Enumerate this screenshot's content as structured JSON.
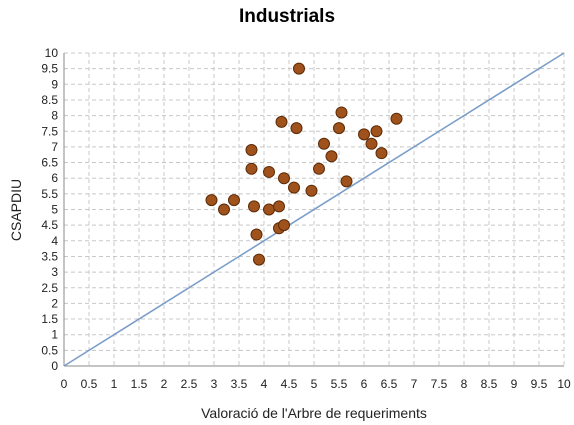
{
  "chart_data": {
    "type": "scatter",
    "title": "Industrials",
    "xlabel": "Valoració de l'Arbre de requeriments",
    "ylabel": "CSAPDIU",
    "xlim": [
      0,
      10
    ],
    "ylim": [
      0,
      10
    ],
    "x_ticks": [
      "0",
      "0.5",
      "1",
      "1.5",
      "2",
      "2.5",
      "3",
      "3.5",
      "4",
      "4.5",
      "5",
      "5.5",
      "6",
      "6.5",
      "7",
      "7.5",
      "8",
      "8.5",
      "9",
      "9.5",
      "10"
    ],
    "y_ticks": [
      "0",
      "0.5",
      "1",
      "1.5",
      "2",
      "2.5",
      "3",
      "3.5",
      "4",
      "4.5",
      "5",
      "5.5",
      "6",
      "6.5",
      "7",
      "7.5",
      "8",
      "8.5",
      "9",
      "9.5",
      "10"
    ],
    "grid": true,
    "reference_line": {
      "x": [
        0,
        10
      ],
      "y": [
        0,
        10
      ]
    },
    "points": [
      {
        "x": 2.95,
        "y": 5.3
      },
      {
        "x": 3.2,
        "y": 5.0
      },
      {
        "x": 3.4,
        "y": 5.3
      },
      {
        "x": 3.75,
        "y": 6.9
      },
      {
        "x": 3.75,
        "y": 6.3
      },
      {
        "x": 3.8,
        "y": 5.1
      },
      {
        "x": 3.85,
        "y": 4.2
      },
      {
        "x": 3.9,
        "y": 3.4
      },
      {
        "x": 4.1,
        "y": 5.0
      },
      {
        "x": 4.1,
        "y": 6.2
      },
      {
        "x": 4.3,
        "y": 5.1
      },
      {
        "x": 4.3,
        "y": 4.4
      },
      {
        "x": 4.35,
        "y": 7.8
      },
      {
        "x": 4.4,
        "y": 4.5
      },
      {
        "x": 4.4,
        "y": 6.0
      },
      {
        "x": 4.6,
        "y": 5.7
      },
      {
        "x": 4.65,
        "y": 7.6
      },
      {
        "x": 4.7,
        "y": 9.5
      },
      {
        "x": 4.95,
        "y": 5.6
      },
      {
        "x": 5.1,
        "y": 6.3
      },
      {
        "x": 5.2,
        "y": 7.1
      },
      {
        "x": 5.35,
        "y": 6.7
      },
      {
        "x": 5.5,
        "y": 7.6
      },
      {
        "x": 5.55,
        "y": 8.1
      },
      {
        "x": 5.65,
        "y": 5.9
      },
      {
        "x": 6.0,
        "y": 7.4
      },
      {
        "x": 6.15,
        "y": 7.1
      },
      {
        "x": 6.25,
        "y": 7.5
      },
      {
        "x": 6.35,
        "y": 6.8
      },
      {
        "x": 6.65,
        "y": 7.9
      }
    ],
    "colors": {
      "marker_fill": "#a0521c",
      "marker_stroke": "#5c2b07",
      "reference_line": "#7a9cc8",
      "grid": "#c8c8c8",
      "axis": "#888888"
    }
  }
}
